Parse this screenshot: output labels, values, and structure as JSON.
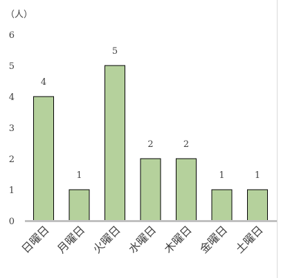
{
  "chart_data": {
    "type": "bar",
    "unit_label": "（人）",
    "categories": [
      "日曜日",
      "月曜日",
      "火曜日",
      "水曜日",
      "木曜日",
      "金曜日",
      "土曜日"
    ],
    "values": [
      4,
      1,
      5,
      2,
      2,
      1,
      1
    ],
    "ylim": [
      0,
      6
    ],
    "yticks": [
      0,
      1,
      2,
      3,
      4,
      5,
      6
    ],
    "grid": false,
    "data_labels": true,
    "bar_color": "#b5d19c",
    "bar_stroke": "#000000",
    "axis_color": "#c0c0c0",
    "text_color": "#404040",
    "label_rotation": "-45deg"
  }
}
